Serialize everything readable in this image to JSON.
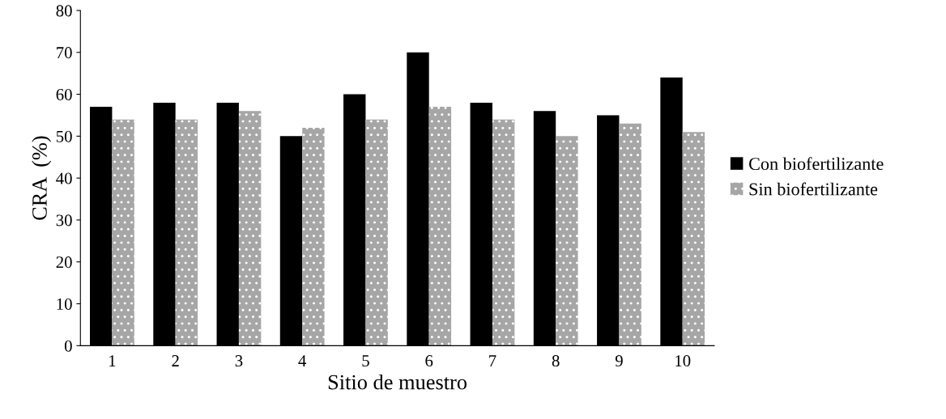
{
  "chart_data": {
    "type": "bar",
    "xlabel": "Sitio de muestro",
    "ylabel": "CRA  (%)",
    "categories": [
      "1",
      "2",
      "3",
      "4",
      "5",
      "6",
      "7",
      "8",
      "9",
      "10"
    ],
    "series": [
      {
        "name": "Con biofertilizante",
        "color": "#000000",
        "values": [
          57,
          58,
          58,
          50,
          60,
          70,
          58,
          56,
          55,
          64
        ]
      },
      {
        "name": "Sin biofertilizante",
        "color": "#a6a6a6",
        "values": [
          54,
          54,
          56,
          52,
          54,
          57,
          54,
          50,
          53,
          51
        ]
      }
    ],
    "ylim": [
      0,
      80
    ],
    "yticks": [
      0,
      10,
      20,
      30,
      40,
      50,
      60,
      70,
      80
    ],
    "grid": false,
    "legend": "right"
  }
}
